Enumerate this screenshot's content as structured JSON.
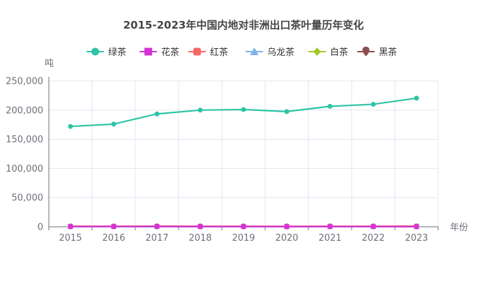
{
  "chart_data": {
    "type": "line",
    "title": "2015-2023年中国内地对非洲出口茶叶量历年变化",
    "xlabel": "年份",
    "ylabel": "吨",
    "categories": [
      "2015",
      "2016",
      "2017",
      "2018",
      "2019",
      "2020",
      "2021",
      "2022",
      "2023"
    ],
    "ylim": [
      0,
      250000
    ],
    "yticks": [
      "0",
      "50,000",
      "100,000",
      "150,000",
      "200,000",
      "250,000"
    ],
    "ytick_values": [
      0,
      50000,
      100000,
      150000,
      200000,
      250000
    ],
    "grid": true,
    "legend_position": "top-center",
    "series": [
      {
        "name": "绿茶",
        "color": "#2ec4a6",
        "marker": "circle",
        "values": [
          172000,
          176000,
          193500,
          200000,
          201000,
          197500,
          206500,
          210000,
          220500
        ]
      },
      {
        "name": "花茶",
        "color": "#d533d5",
        "marker": "square",
        "values": [
          400,
          500,
          500,
          400,
          400,
          300,
          400,
          400,
          300
        ]
      },
      {
        "name": "红茶",
        "color": "#f96868",
        "marker": "rounded-square",
        "values": [
          900,
          1000,
          1100,
          900,
          900,
          800,
          1000,
          1000,
          1200
        ]
      },
      {
        "name": "乌龙茶",
        "color": "#7eb3ea",
        "marker": "triangle",
        "values": [
          100,
          100,
          100,
          100,
          100,
          100,
          100,
          100,
          100
        ]
      },
      {
        "name": "白茶",
        "color": "#a6c82d",
        "marker": "diamond",
        "values": [
          100,
          100,
          100,
          100,
          100,
          100,
          100,
          100,
          100
        ]
      },
      {
        "name": "黑茶",
        "color": "#8c4f4f",
        "marker": "pin",
        "values": [
          50,
          50,
          50,
          50,
          50,
          50,
          50,
          50,
          50
        ]
      }
    ]
  }
}
